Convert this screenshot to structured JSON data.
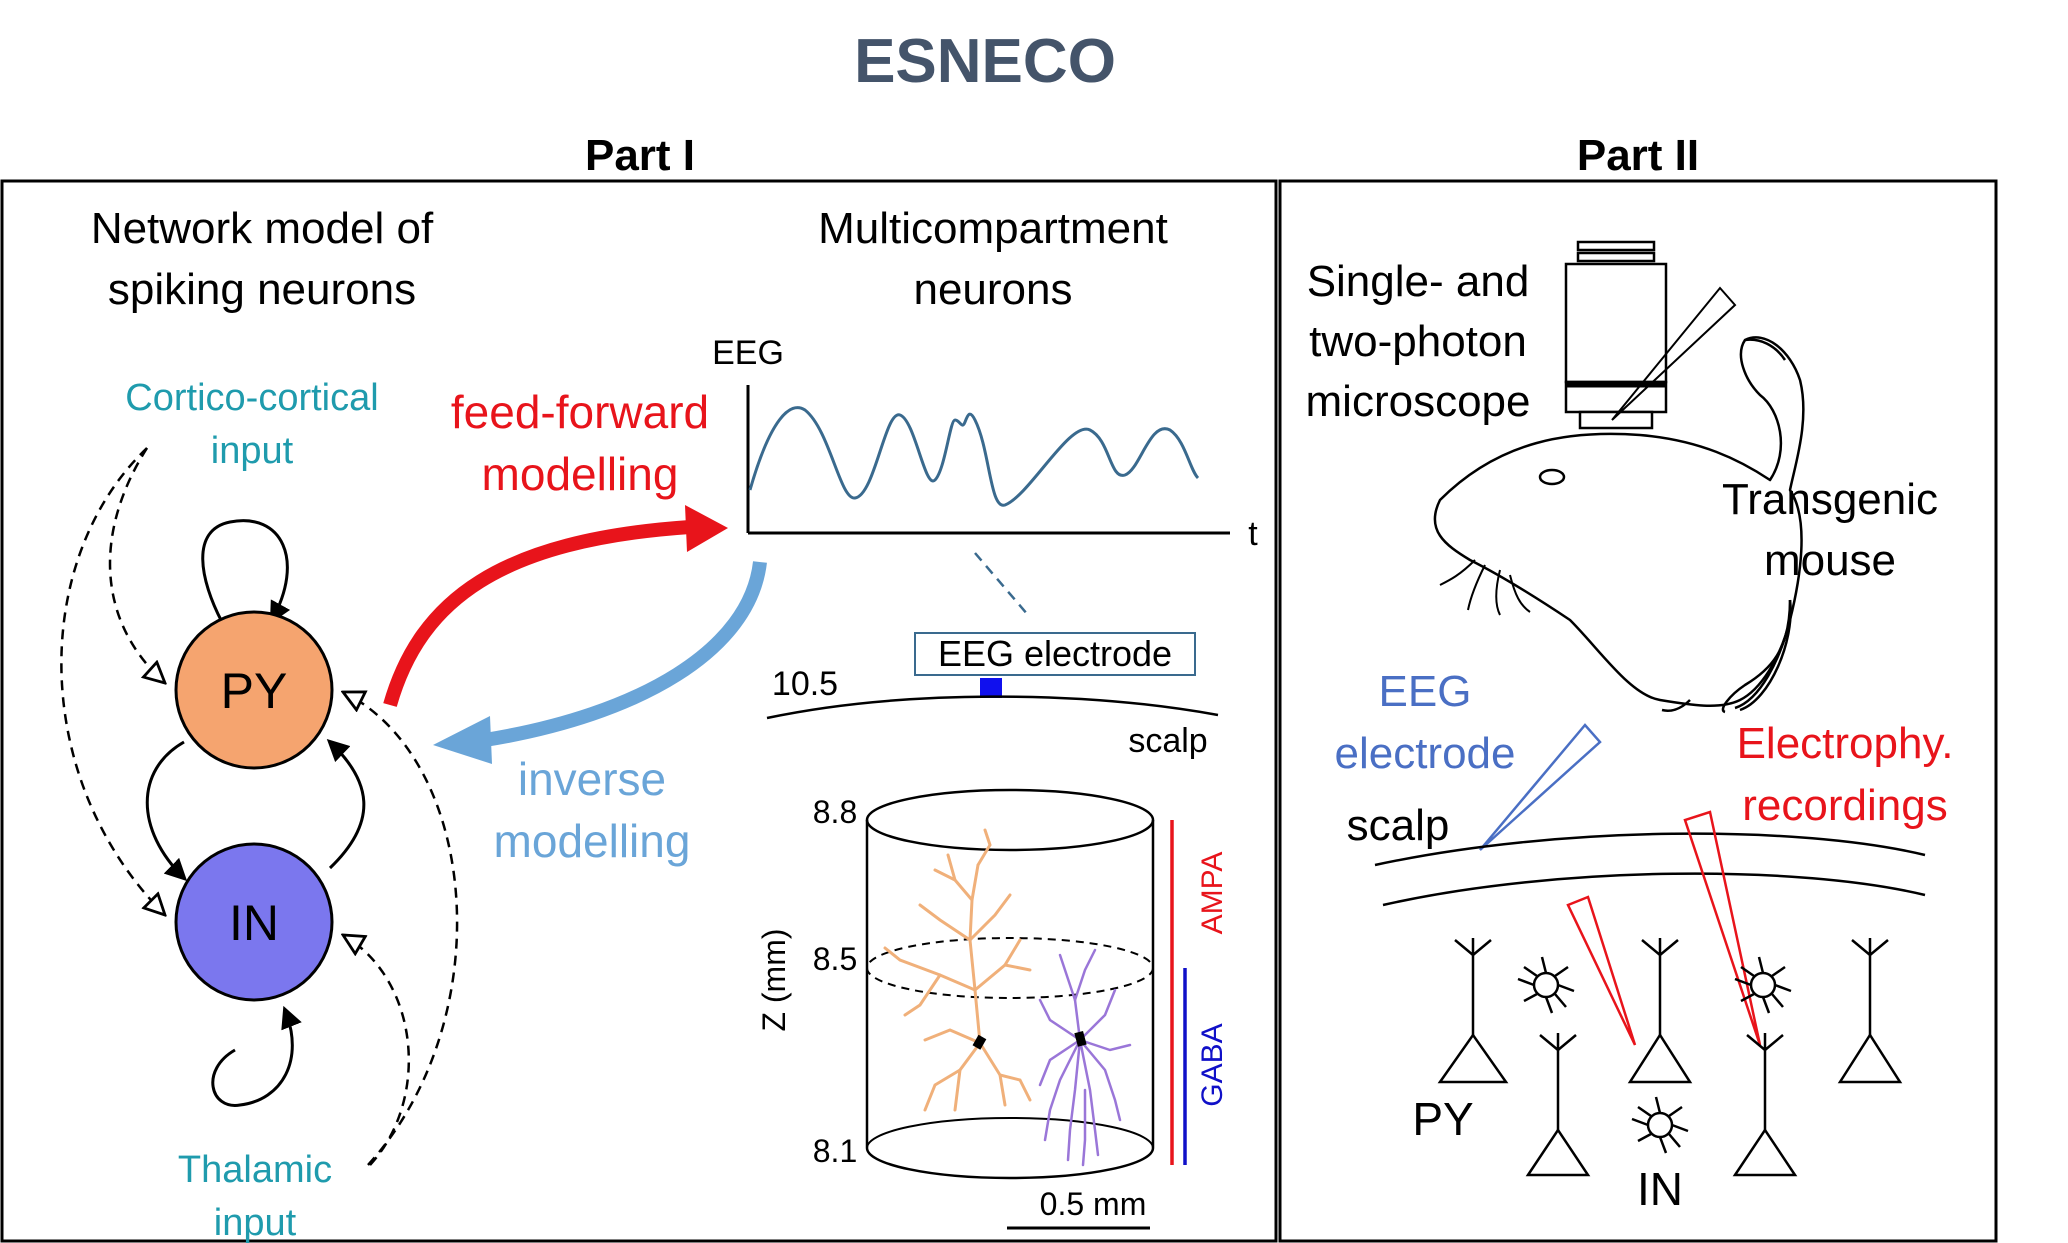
{
  "title": "ESNECO",
  "part1": {
    "heading": "Part I",
    "network_title_line1": "Network model of",
    "network_title_line2": "spiking neurons",
    "cortico_line1": "Cortico-cortical",
    "cortico_line2": "input",
    "thalamic_line1": "Thalamic",
    "thalamic_line2": "input",
    "py_label": "PY",
    "in_label": "IN",
    "feedforward_line1": "feed-forward",
    "feedforward_line2": "modelling",
    "inverse_line1": "inverse",
    "inverse_line2": "modelling",
    "multi_title_line1": "Multicompartment",
    "multi_title_line2": "neurons",
    "eeg_axis_label": "EEG",
    "t_axis_label": "t",
    "eeg_electrode_label": "EEG electrode",
    "scalp_value": "10.5",
    "scalp_label": "scalp",
    "z_axis_label": "Z (mm)",
    "z_ticks": [
      "8.8",
      "8.5",
      "8.1"
    ],
    "ampa_label": "AMPA",
    "gaba_label": "GABA",
    "scale_bar_label": "0.5 mm"
  },
  "part2": {
    "heading": "Part II",
    "microscope_line1": "Single- and",
    "microscope_line2": "two-photon",
    "microscope_line3": "microscope",
    "mouse_line1": "Transgenic",
    "mouse_line2": "mouse",
    "eeg_line1": "EEG",
    "eeg_line2": "electrode",
    "scalp_label": "scalp",
    "ephys_line1": "Electrophy.",
    "ephys_line2": "recordings",
    "py_label": "PY",
    "in_label": "IN"
  },
  "colors": {
    "title": "#44546a",
    "cyan": "#1f9bad",
    "red": "#e8141b",
    "blue": "#6aa5d8",
    "py_fill": "#f5a46f",
    "in_fill": "#7b77ee",
    "eeg_trace": "#3a6a8e",
    "electrode": "#1010ee",
    "orange_neuron": "#f0b07a",
    "purple_neuron": "#9a76d8",
    "eeg_text2": "#4a6fc4"
  }
}
